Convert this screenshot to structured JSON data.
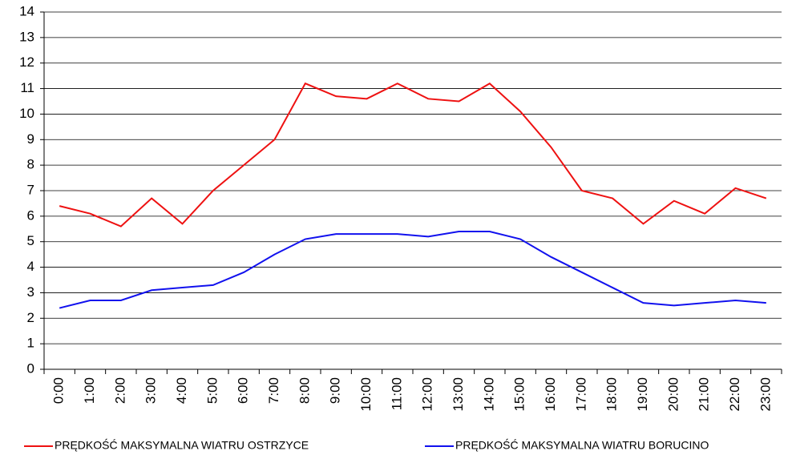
{
  "chart_data": {
    "type": "line",
    "categories": [
      "0:00",
      "1:00",
      "2:00",
      "3:00",
      "4:00",
      "5:00",
      "6:00",
      "7:00",
      "8:00",
      "9:00",
      "10:00",
      "11:00",
      "12:00",
      "13:00",
      "14:00",
      "15:00",
      "16:00",
      "17:00",
      "18:00",
      "19:00",
      "20:00",
      "21:00",
      "22:00",
      "23:00"
    ],
    "series": [
      {
        "name": "PRĘDKOŚĆ MAKSYMALNA WIATRU OSTRZYCE",
        "color": "#ee1111",
        "values": [
          6.4,
          6.1,
          5.6,
          6.7,
          5.7,
          7.0,
          8.0,
          9.0,
          11.2,
          10.7,
          10.6,
          11.2,
          10.6,
          10.5,
          11.2,
          10.1,
          8.7,
          7.0,
          6.7,
          5.7,
          6.6,
          6.1,
          7.1,
          6.7
        ]
      },
      {
        "name": "PRĘDKOŚĆ MAKSYMALNA WIATRU BORUCINO",
        "color": "#1111ee",
        "values": [
          2.4,
          2.7,
          2.7,
          3.1,
          3.2,
          3.3,
          3.8,
          4.5,
          5.1,
          5.3,
          5.3,
          5.3,
          5.2,
          5.4,
          5.4,
          5.1,
          4.4,
          3.8,
          3.2,
          2.6,
          2.5,
          2.6,
          2.7,
          2.6
        ]
      }
    ],
    "ylim": [
      0,
      14
    ],
    "yticks": [
      0,
      1,
      2,
      3,
      4,
      5,
      6,
      7,
      8,
      9,
      10,
      11,
      12,
      13,
      14
    ],
    "grid": true,
    "legend": "bottom"
  }
}
